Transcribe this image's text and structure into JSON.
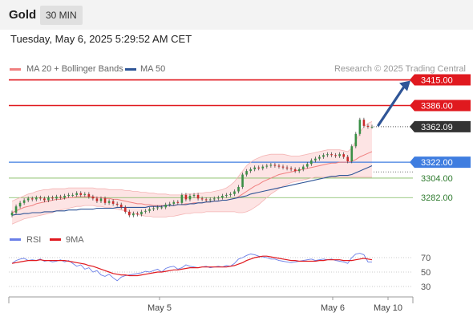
{
  "header": {
    "instrument": "Gold",
    "timeframe": "30 MIN"
  },
  "date_line": "Tuesday, May 6, 2025 5:29:52 AM CET",
  "legend": {
    "bollinger": "MA 20 + Bollinger Bands",
    "ma50": "MA 50"
  },
  "copyright": "Research © 2025 Trading Central",
  "rsi_legend": {
    "rsi": "RSI",
    "ma": "9MA"
  },
  "colors": {
    "resistance": "#e0191f",
    "pivot": "#3f7de0",
    "support": "#7cb85a",
    "current": "#333333",
    "bollinger": "#f08080",
    "ma50": "#2f5597",
    "arrow": "#2f5597",
    "rsi": "#6a7fe8",
    "rsi_ma": "#e0191f"
  },
  "chart_data": [
    {
      "type": "candlestick",
      "y_range": [
        3255,
        3420
      ],
      "x_ticks": [
        "May 5",
        "May 6",
        "May 10"
      ],
      "price_labels": {
        "r2": "3415.00",
        "r1": "3386.00",
        "current": "3362.09",
        "pivot": "3322.00",
        "s1": "3304.00",
        "s2": "3282.00"
      },
      "levels": [
        {
          "label": "3415.00",
          "value": 3415.0,
          "kind": "resistance"
        },
        {
          "label": "3386.00",
          "value": 3386.0,
          "kind": "resistance"
        },
        {
          "label": "3362.09",
          "value": 3362.09,
          "kind": "current"
        },
        {
          "label": "3322.00",
          "value": 3322.0,
          "kind": "pivot"
        },
        {
          "label": "3304.00",
          "value": 3304.0,
          "kind": "support"
        },
        {
          "label": "3282.00",
          "value": 3282.0,
          "kind": "support"
        }
      ],
      "close": [
        3265,
        3272,
        3276,
        3279,
        3281,
        3280,
        3282,
        3281,
        3279,
        3282,
        3281,
        3283,
        3282,
        3284,
        3285,
        3285,
        3287,
        3285,
        3286,
        3283,
        3281,
        3278,
        3281,
        3276,
        3278,
        3275,
        3274,
        3271,
        3266,
        3262,
        3264,
        3263,
        3266,
        3267,
        3269,
        3270,
        3271,
        3271,
        3274,
        3275,
        3277,
        3276,
        3285,
        3280,
        3284,
        3285,
        3281,
        3280,
        3279,
        3280,
        3281,
        3282,
        3284,
        3285,
        3286,
        3289,
        3294,
        3308,
        3312,
        3314,
        3316,
        3315,
        3317,
        3318,
        3319,
        3318,
        3317,
        3316,
        3315,
        3314,
        3312,
        3314,
        3317,
        3320,
        3324,
        3326,
        3328,
        3330,
        3331,
        3330,
        3329,
        3331,
        3328,
        3323,
        3340,
        3354,
        3370,
        3363,
        3362,
        3362
      ],
      "ma20": [
        3265,
        3267,
        3269,
        3271,
        3272,
        3273,
        3275,
        3276,
        3277,
        3278,
        3279,
        3280,
        3280,
        3281,
        3282,
        3282,
        3283,
        3283,
        3283,
        3283,
        3283,
        3282,
        3282,
        3281,
        3281,
        3280,
        3280,
        3279,
        3278,
        3277,
        3276,
        3275,
        3275,
        3274,
        3274,
        3273,
        3273,
        3273,
        3273,
        3273,
        3273,
        3274,
        3274,
        3275,
        3275,
        3276,
        3276,
        3276,
        3277,
        3277,
        3278,
        3278,
        3279,
        3279,
        3280,
        3281,
        3283,
        3286,
        3289,
        3292,
        3295,
        3297,
        3300,
        3302,
        3304,
        3306,
        3308,
        3309,
        3310,
        3311,
        3312,
        3313,
        3314,
        3315,
        3316,
        3317,
        3318,
        3319,
        3320,
        3321,
        3321,
        3322,
        3322,
        3322,
        3323,
        3325,
        3328,
        3330,
        3332,
        3334
      ],
      "upper_band": [
        3278,
        3280,
        3282,
        3284,
        3286,
        3287,
        3289,
        3290,
        3291,
        3291,
        3292,
        3292,
        3292,
        3292,
        3293,
        3293,
        3293,
        3293,
        3293,
        3293,
        3293,
        3292,
        3292,
        3292,
        3291,
        3291,
        3291,
        3291,
        3290,
        3290,
        3289,
        3289,
        3288,
        3288,
        3287,
        3287,
        3286,
        3286,
        3286,
        3285,
        3285,
        3285,
        3285,
        3286,
        3286,
        3286,
        3287,
        3287,
        3288,
        3288,
        3289,
        3290,
        3291,
        3293,
        3296,
        3300,
        3306,
        3312,
        3318,
        3322,
        3325,
        3327,
        3329,
        3330,
        3331,
        3331,
        3331,
        3331,
        3330,
        3329,
        3329,
        3329,
        3330,
        3331,
        3332,
        3333,
        3334,
        3335,
        3336,
        3336,
        3336,
        3336,
        3335,
        3334,
        3338,
        3346,
        3356,
        3362,
        3366,
        3368
      ],
      "lower_band": [
        3252,
        3254,
        3256,
        3258,
        3259,
        3260,
        3261,
        3262,
        3263,
        3264,
        3265,
        3267,
        3268,
        3269,
        3270,
        3271,
        3272,
        3272,
        3273,
        3273,
        3273,
        3272,
        3272,
        3271,
        3271,
        3270,
        3269,
        3268,
        3267,
        3265,
        3264,
        3263,
        3262,
        3261,
        3261,
        3260,
        3260,
        3260,
        3260,
        3261,
        3261,
        3262,
        3263,
        3264,
        3264,
        3265,
        3265,
        3265,
        3266,
        3266,
        3266,
        3266,
        3266,
        3266,
        3266,
        3266,
        3265,
        3265,
        3266,
        3268,
        3271,
        3274,
        3278,
        3282,
        3286,
        3289,
        3292,
        3295,
        3297,
        3299,
        3300,
        3301,
        3302,
        3303,
        3304,
        3305,
        3305,
        3305,
        3305,
        3305,
        3305,
        3305,
        3305,
        3305,
        3305,
        3305,
        3305,
        3305,
        3305,
        3305
      ],
      "ma50": [
        3262,
        3263,
        3263,
        3264,
        3264,
        3265,
        3265,
        3265,
        3266,
        3266,
        3266,
        3267,
        3267,
        3267,
        3268,
        3268,
        3268,
        3269,
        3269,
        3269,
        3269,
        3270,
        3270,
        3270,
        3270,
        3270,
        3271,
        3271,
        3271,
        3271,
        3271,
        3271,
        3271,
        3271,
        3272,
        3272,
        3272,
        3272,
        3273,
        3273,
        3273,
        3274,
        3274,
        3274,
        3275,
        3275,
        3276,
        3276,
        3277,
        3277,
        3278,
        3278,
        3279,
        3279,
        3280,
        3281,
        3282,
        3283,
        3284,
        3286,
        3287,
        3288,
        3289,
        3290,
        3291,
        3292,
        3293,
        3294,
        3295,
        3296,
        3297,
        3298,
        3299,
        3300,
        3301,
        3302,
        3303,
        3304,
        3305,
        3306,
        3306,
        3307,
        3307,
        3307,
        3308,
        3310,
        3312,
        3314,
        3316,
        3318
      ],
      "projection": {
        "from": 3362,
        "to": 3415
      }
    },
    {
      "type": "line",
      "title": "RSI",
      "y_range": [
        20,
        80
      ],
      "y_ticks": [
        "70",
        "50",
        "30"
      ],
      "y_tick_values": [
        70,
        50,
        30
      ],
      "rsi": [
        62,
        66,
        68,
        69,
        66,
        67,
        66,
        68,
        65,
        66,
        64,
        65,
        67,
        64,
        66,
        62,
        58,
        60,
        54,
        56,
        50,
        52,
        46,
        44,
        47,
        42,
        38,
        43,
        45,
        46,
        47,
        48,
        49,
        51,
        50,
        52,
        54,
        50,
        55,
        57,
        58,
        54,
        56,
        60,
        58,
        57,
        56,
        57,
        58,
        56,
        57,
        58,
        57,
        59,
        58,
        62,
        68,
        70,
        73,
        75,
        74,
        72,
        71,
        70,
        68,
        68,
        66,
        65,
        64,
        63,
        64,
        65,
        66,
        67,
        68,
        66,
        67,
        68,
        67,
        68,
        66,
        65,
        64,
        62,
        70,
        75,
        76,
        74,
        64,
        64
      ],
      "ma": [
        62,
        63,
        64,
        65,
        66,
        66,
        66,
        67,
        66,
        66,
        66,
        66,
        66,
        66,
        65,
        64,
        63,
        62,
        61,
        59,
        58,
        56,
        54,
        52,
        50,
        48,
        47,
        46,
        46,
        45,
        45,
        45,
        46,
        47,
        48,
        49,
        50,
        50,
        51,
        52,
        53,
        53,
        54,
        55,
        56,
        56,
        56,
        57,
        57,
        57,
        57,
        57,
        57,
        57,
        58,
        59,
        61,
        63,
        66,
        68,
        70,
        71,
        72,
        72,
        71,
        70,
        69,
        68,
        67,
        66,
        66,
        65,
        65,
        65,
        65,
        65,
        66,
        66,
        67,
        67,
        67,
        67,
        66,
        66,
        66,
        67,
        68,
        69,
        68,
        67
      ]
    }
  ]
}
